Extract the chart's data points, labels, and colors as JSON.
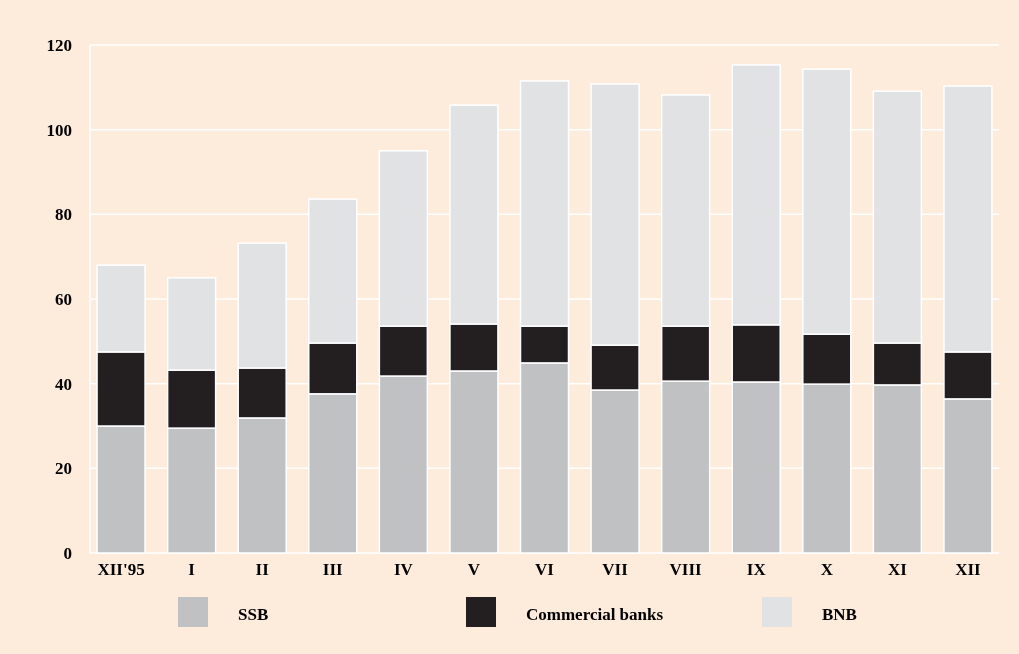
{
  "chart_data": {
    "type": "bar",
    "stacked": true,
    "categories": [
      "XII'95",
      "I",
      "II",
      "III",
      "IV",
      "V",
      "VI",
      "VII",
      "VIII",
      "IX",
      "X",
      "XI",
      "XII"
    ],
    "series": [
      {
        "name": "SSB",
        "color": "#c0c1c3",
        "values": [
          30.0,
          29.5,
          31.9,
          37.6,
          41.8,
          43.0,
          44.9,
          38.5,
          40.6,
          40.4,
          39.9,
          39.7,
          36.4
        ]
      },
      {
        "name": "Commercial banks",
        "color": "#231f20",
        "values": [
          17.5,
          13.7,
          11.8,
          12.0,
          11.8,
          11.1,
          8.7,
          10.6,
          13.0,
          13.5,
          11.8,
          9.9,
          11.1
        ]
      },
      {
        "name": "BNB",
        "color": "#e1e2e4",
        "values": [
          20.5,
          21.8,
          29.5,
          34.0,
          41.4,
          51.7,
          57.9,
          61.7,
          54.6,
          61.4,
          62.6,
          59.5,
          62.8
        ]
      }
    ],
    "ylim": [
      0,
      120
    ],
    "yticks": [
      0,
      20,
      40,
      60,
      80,
      100,
      120
    ],
    "grid": "y",
    "legend": "bottom"
  }
}
